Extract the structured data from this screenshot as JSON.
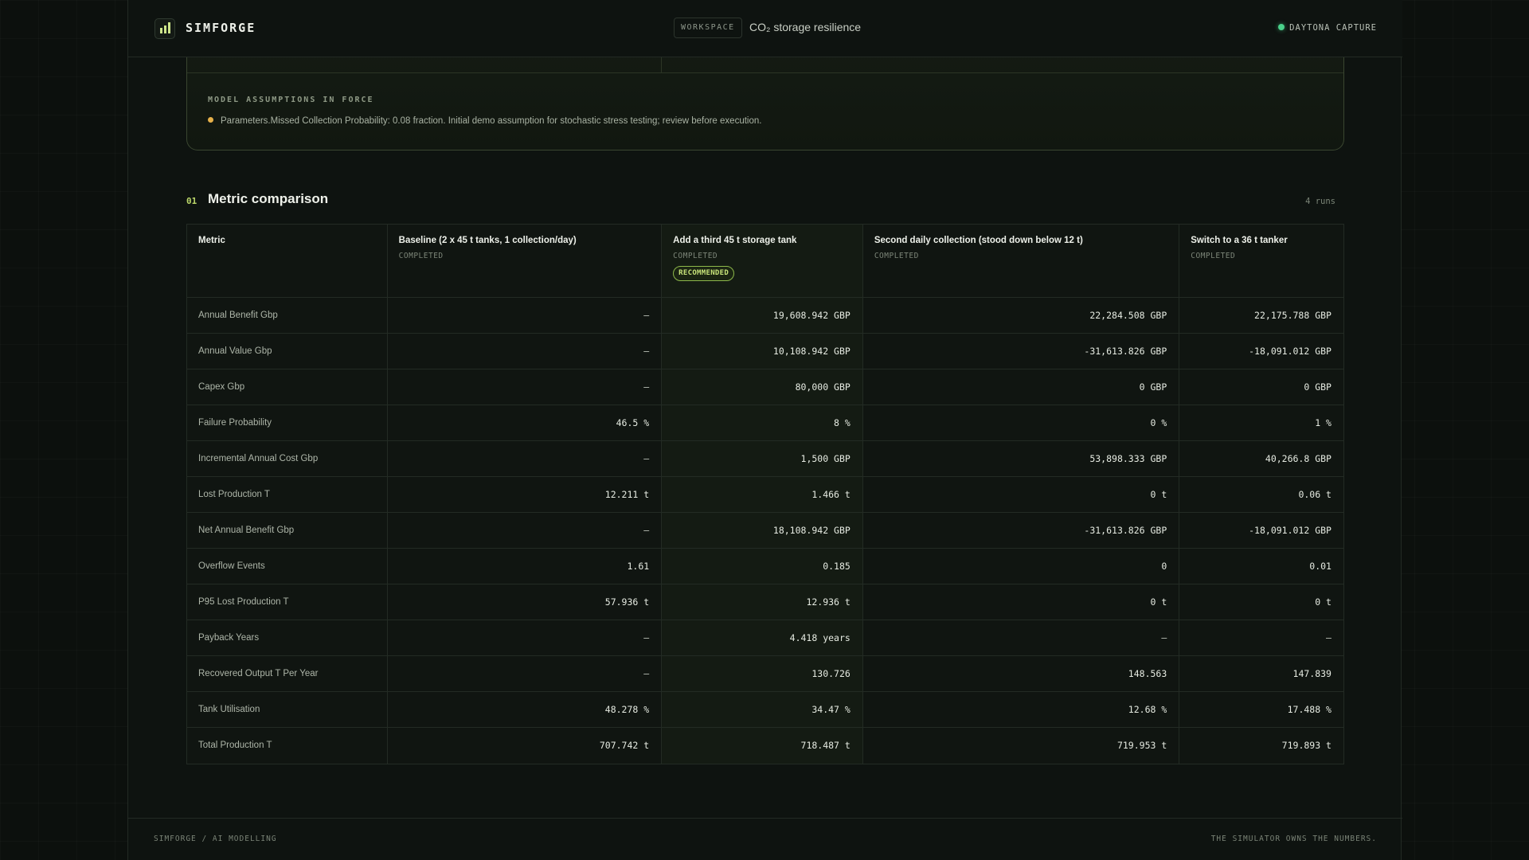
{
  "header": {
    "brand": "SIMFORGE",
    "workspace_label": "WORKSPACE",
    "workspace_title": "CO₂ storage resilience",
    "capture_label": "DAYTONA CAPTURE"
  },
  "assumptions": {
    "title": "MODEL ASSUMPTIONS IN FORCE",
    "items": [
      "Parameters.Missed Collection Probability: 0.08 fraction. Initial demo assumption for stochastic stress testing; review before execution."
    ]
  },
  "section": {
    "number": "01",
    "title": "Metric comparison",
    "runs": "4 runs"
  },
  "table": {
    "metric_header": "Metric",
    "recommended_badge": "RECOMMENDED",
    "scenarios": [
      {
        "name": "Baseline (2 x 45 t tanks, 1 collection/day)",
        "status": "COMPLETED",
        "recommended": false
      },
      {
        "name": "Add a third 45 t storage tank",
        "status": "COMPLETED",
        "recommended": true
      },
      {
        "name": "Second daily collection (stood down below 12 t)",
        "status": "COMPLETED",
        "recommended": false
      },
      {
        "name": "Switch to a 36 t tanker",
        "status": "COMPLETED",
        "recommended": false
      }
    ],
    "rows": [
      {
        "metric": "Annual Benefit Gbp",
        "values": [
          "—",
          "19,608.942 GBP",
          "22,284.508 GBP",
          "22,175.788 GBP"
        ]
      },
      {
        "metric": "Annual Value Gbp",
        "values": [
          "—",
          "10,108.942 GBP",
          "-31,613.826 GBP",
          "-18,091.012 GBP"
        ]
      },
      {
        "metric": "Capex Gbp",
        "values": [
          "—",
          "80,000 GBP",
          "0 GBP",
          "0 GBP"
        ]
      },
      {
        "metric": "Failure Probability",
        "values": [
          "46.5 %",
          "8 %",
          "0 %",
          "1 %"
        ]
      },
      {
        "metric": "Incremental Annual Cost Gbp",
        "values": [
          "—",
          "1,500 GBP",
          "53,898.333 GBP",
          "40,266.8 GBP"
        ]
      },
      {
        "metric": "Lost Production T",
        "values": [
          "12.211 t",
          "1.466 t",
          "0 t",
          "0.06 t"
        ]
      },
      {
        "metric": "Net Annual Benefit Gbp",
        "values": [
          "—",
          "18,108.942 GBP",
          "-31,613.826 GBP",
          "-18,091.012 GBP"
        ]
      },
      {
        "metric": "Overflow Events",
        "values": [
          "1.61",
          "0.185",
          "0",
          "0.01"
        ]
      },
      {
        "metric": "P95 Lost Production T",
        "values": [
          "57.936 t",
          "12.936 t",
          "0 t",
          "0 t"
        ]
      },
      {
        "metric": "Payback Years",
        "values": [
          "—",
          "4.418 years",
          "—",
          "—"
        ]
      },
      {
        "metric": "Recovered Output T Per Year",
        "values": [
          "—",
          "130.726",
          "148.563",
          "147.839"
        ]
      },
      {
        "metric": "Tank Utilisation",
        "values": [
          "48.278 %",
          "34.47 %",
          "12.68 %",
          "17.488 %"
        ]
      },
      {
        "metric": "Total Production T",
        "values": [
          "707.742 t",
          "718.487 t",
          "719.953 t",
          "719.893 t"
        ]
      }
    ]
  },
  "footer": {
    "left": "SIMFORGE / AI MODELLING",
    "right": "THE SIMULATOR OWNS THE NUMBERS."
  }
}
